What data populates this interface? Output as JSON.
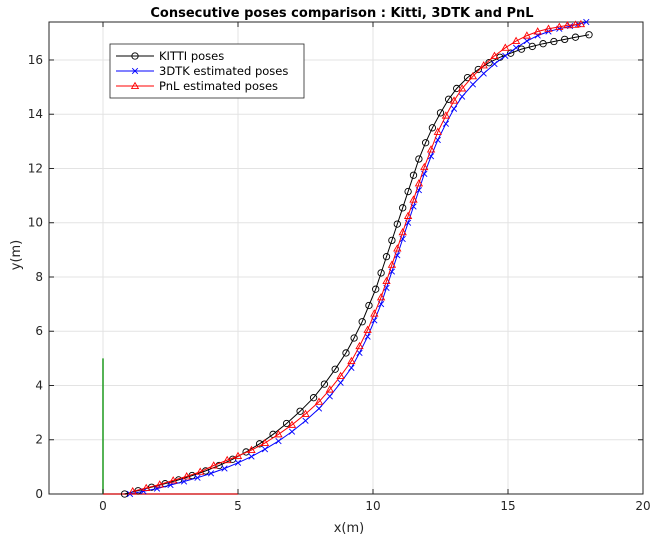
{
  "chart_data": {
    "type": "line",
    "title": "Consecutive poses comparison : Kitti, 3DTK and PnL",
    "xlabel": "x(m)",
    "ylabel": "y(m)",
    "xlim": [
      -2,
      20
    ],
    "ylim": [
      0,
      17.4
    ],
    "xticks": [
      0,
      5,
      10,
      15,
      20
    ],
    "yticks": [
      0,
      2,
      4,
      6,
      8,
      10,
      12,
      14,
      16
    ],
    "xtick_labels": [
      "0",
      "5",
      "10",
      "15",
      "20"
    ],
    "ytick_labels": [
      "0",
      "2",
      "4",
      "6",
      "8",
      "10",
      "12",
      "14",
      "16"
    ],
    "grid": true,
    "legend_position": "top-left",
    "series": [
      {
        "name": "KITTI poses",
        "color": "#000000",
        "marker": "circle",
        "x": [
          0.8,
          1.3,
          1.8,
          2.3,
          2.8,
          3.3,
          3.8,
          4.3,
          4.8,
          5.3,
          5.8,
          6.3,
          6.8,
          7.3,
          7.8,
          8.2,
          8.6,
          9.0,
          9.3,
          9.6,
          9.85,
          10.1,
          10.3,
          10.5,
          10.7,
          10.9,
          11.1,
          11.3,
          11.5,
          11.7,
          11.95,
          12.2,
          12.5,
          12.8,
          13.1,
          13.5,
          13.9,
          14.3,
          14.7,
          15.1,
          15.5,
          15.9,
          16.3,
          16.7,
          17.1,
          17.5,
          18.0
        ],
        "y": [
          0.0,
          0.12,
          0.25,
          0.38,
          0.52,
          0.68,
          0.85,
          1.05,
          1.28,
          1.55,
          1.85,
          2.2,
          2.6,
          3.05,
          3.55,
          4.05,
          4.6,
          5.2,
          5.75,
          6.35,
          6.95,
          7.55,
          8.15,
          8.75,
          9.35,
          9.95,
          10.55,
          11.15,
          11.75,
          12.35,
          12.95,
          13.5,
          14.05,
          14.55,
          14.95,
          15.35,
          15.65,
          15.9,
          16.1,
          16.25,
          16.4,
          16.5,
          16.6,
          16.68,
          16.76,
          16.84,
          16.93
        ]
      },
      {
        "name": "3DTK estimated poses",
        "color": "#0000ff",
        "marker": "x",
        "x": [
          1.0,
          1.5,
          2.0,
          2.5,
          3.0,
          3.5,
          4.0,
          4.5,
          5.0,
          5.5,
          6.0,
          6.5,
          7.0,
          7.5,
          8.0,
          8.4,
          8.8,
          9.2,
          9.5,
          9.8,
          10.05,
          10.3,
          10.5,
          10.7,
          10.9,
          11.1,
          11.3,
          11.5,
          11.7,
          11.9,
          12.15,
          12.4,
          12.7,
          13.0,
          13.3,
          13.7,
          14.1,
          14.5,
          14.9,
          15.3,
          15.7,
          16.1,
          16.5,
          16.9,
          17.3,
          17.6,
          17.9
        ],
        "y": [
          0.0,
          0.1,
          0.2,
          0.33,
          0.46,
          0.6,
          0.76,
          0.94,
          1.15,
          1.38,
          1.65,
          1.95,
          2.3,
          2.7,
          3.15,
          3.6,
          4.1,
          4.65,
          5.2,
          5.8,
          6.4,
          7.0,
          7.6,
          8.2,
          8.8,
          9.4,
          10.0,
          10.6,
          11.2,
          11.8,
          12.45,
          13.05,
          13.65,
          14.2,
          14.65,
          15.1,
          15.5,
          15.85,
          16.15,
          16.45,
          16.7,
          16.9,
          17.05,
          17.15,
          17.25,
          17.32,
          17.4
        ]
      },
      {
        "name": "PnL estimated poses",
        "color": "#ff0000",
        "marker": "triangle",
        "x": [
          1.1,
          1.6,
          2.1,
          2.6,
          3.1,
          3.6,
          4.1,
          4.6,
          5.0,
          5.5,
          6.0,
          6.5,
          7.0,
          7.5,
          8.0,
          8.4,
          8.8,
          9.2,
          9.5,
          9.8,
          10.05,
          10.3,
          10.5,
          10.7,
          10.9,
          11.1,
          11.3,
          11.5,
          11.7,
          11.9,
          12.15,
          12.4,
          12.7,
          13.0,
          13.3,
          13.7,
          14.1,
          14.5,
          14.9,
          15.3,
          15.7,
          16.1,
          16.5,
          16.9,
          17.2,
          17.5,
          17.7
        ],
        "y": [
          0.1,
          0.22,
          0.35,
          0.5,
          0.65,
          0.82,
          1.05,
          1.25,
          1.4,
          1.62,
          1.88,
          2.2,
          2.55,
          2.95,
          3.4,
          3.85,
          4.35,
          4.9,
          5.45,
          6.05,
          6.65,
          7.25,
          7.85,
          8.45,
          9.05,
          9.65,
          10.25,
          10.85,
          11.45,
          12.05,
          12.7,
          13.35,
          13.95,
          14.5,
          14.95,
          15.4,
          15.8,
          16.15,
          16.45,
          16.7,
          16.9,
          17.05,
          17.15,
          17.22,
          17.28,
          17.3,
          17.32
        ]
      }
    ],
    "axis_lines": [
      {
        "color": "#2ca02c",
        "x": [
          0,
          0
        ],
        "y": [
          0,
          5
        ]
      },
      {
        "color": "#d62728",
        "x": [
          0,
          5
        ],
        "y": [
          0,
          0
        ]
      }
    ]
  }
}
